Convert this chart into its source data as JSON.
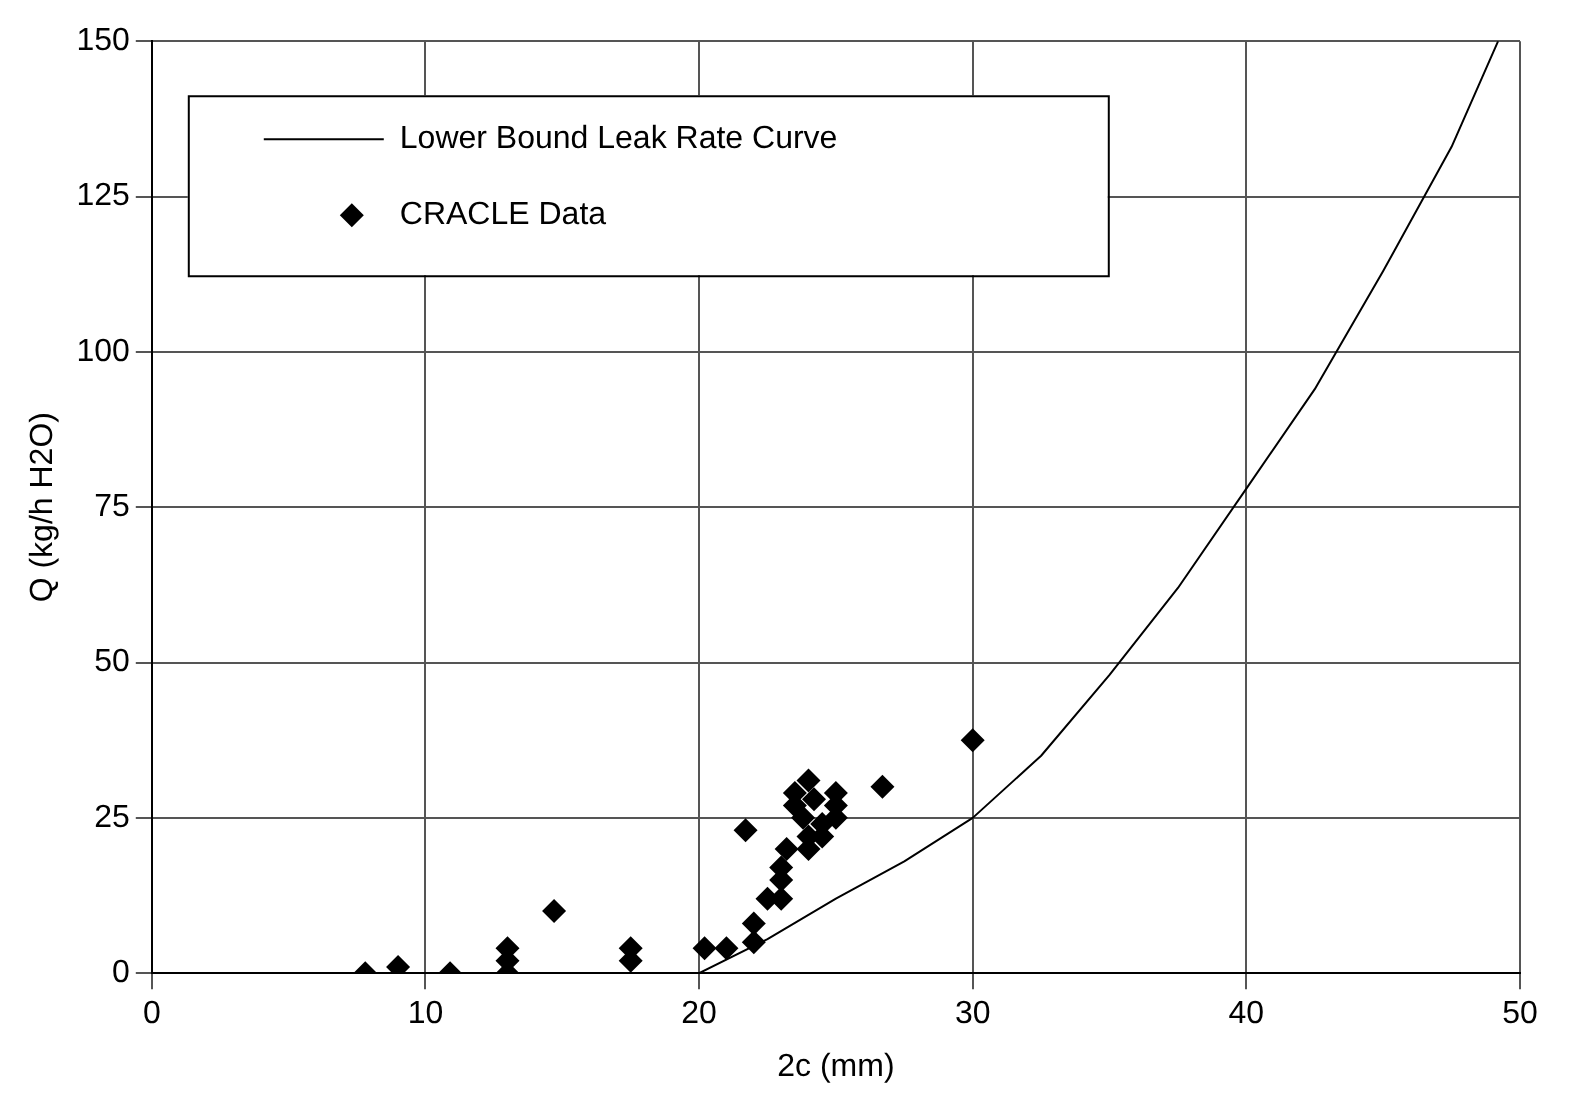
{
  "chart_data": {
    "type": "scatter",
    "xlabel": "2c (mm)",
    "ylabel": "Q (kg/h H2O)",
    "xlim": [
      0,
      50
    ],
    "xticks": [
      0,
      10,
      20,
      30,
      40,
      50
    ],
    "ylim": [
      0,
      150
    ],
    "yticks": [
      0,
      25,
      50,
      75,
      100,
      125,
      150
    ],
    "grid": true,
    "legend": "top left",
    "series": [
      {
        "name": "Lower Bound Leak Rate Curve",
        "type": "line",
        "color": "#000000",
        "marker": "none",
        "line_style": "solid",
        "x": [
          20,
          22.5,
          25,
          27.5,
          30,
          32.5,
          35,
          37.5,
          40,
          42.5,
          45,
          47.5,
          49.2
        ],
        "values": [
          0,
          5.5,
          12,
          18,
          25,
          35,
          48,
          62,
          78,
          94,
          113,
          133,
          150
        ]
      },
      {
        "name": "CRACLE Data",
        "type": "scatter",
        "color": "#000000",
        "marker": "diamond",
        "x": [
          7.8,
          9,
          10.9,
          13,
          13,
          13,
          14.7,
          17.5,
          17.5,
          20.2,
          21,
          21.7,
          22,
          22,
          22.5,
          23,
          23,
          23,
          23.2,
          23.5,
          23.5,
          23.8,
          24,
          24,
          24,
          24.2,
          24.5,
          24.5,
          25,
          25,
          25,
          26.7,
          30
        ],
        "values": [
          0,
          1,
          0,
          0,
          2,
          4,
          10,
          2,
          4,
          4,
          4,
          23,
          5,
          8,
          12,
          12,
          15,
          17,
          20,
          27,
          29,
          25,
          31,
          22,
          20,
          28,
          22,
          24,
          25,
          27,
          29,
          30,
          37.5
        ]
      }
    ]
  }
}
